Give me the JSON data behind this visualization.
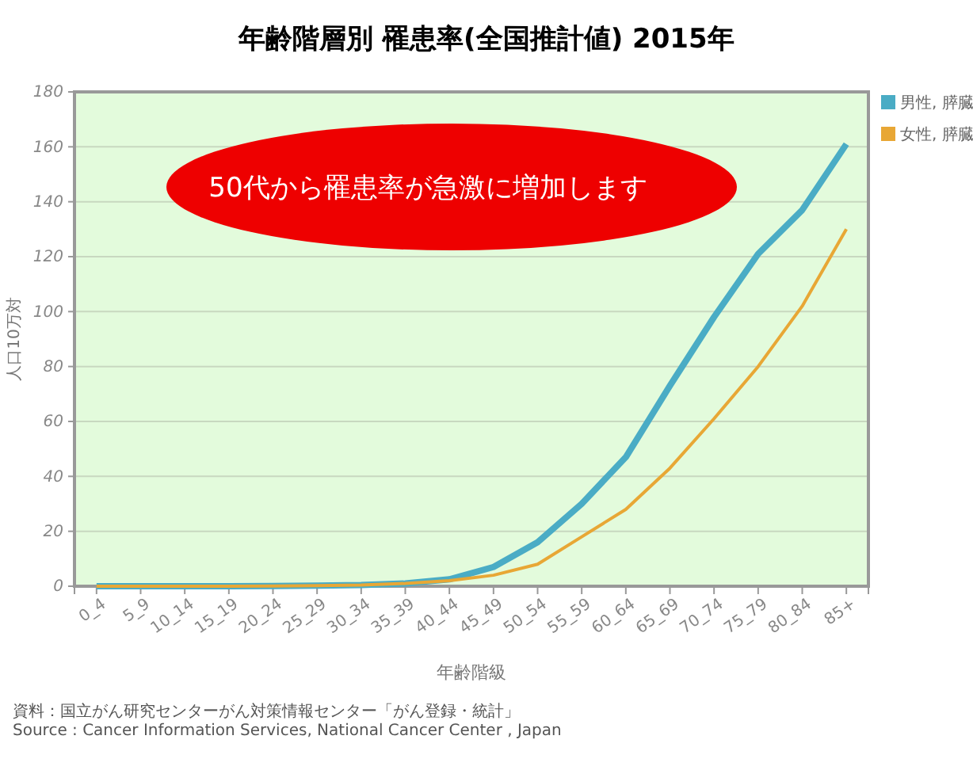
{
  "chart_data": {
    "type": "line",
    "title": "年齢階層別 罹患率(全国推計値) 2015年",
    "xlabel": "年齢階級",
    "ylabel": "人口10万対",
    "categories": [
      "0_4",
      "5_9",
      "10_14",
      "15_19",
      "20_24",
      "25_29",
      "30_34",
      "35_39",
      "40_44",
      "45_49",
      "50_54",
      "55_59",
      "60_64",
      "65_69",
      "70_74",
      "75_79",
      "80_84",
      "85+"
    ],
    "series": [
      {
        "name": "男性, 膵臓",
        "color": "#4aacc5",
        "values": [
          0,
          0,
          0,
          0,
          0.1,
          0.2,
          0.4,
          1,
          2.5,
          7,
          16,
          30,
          47,
          73,
          98,
          121,
          137,
          161
        ]
      },
      {
        "name": "女性, 膵臓",
        "color": "#e8a735",
        "values": [
          0,
          0,
          0,
          0,
          0.1,
          0.2,
          0.4,
          1,
          2,
          4,
          8,
          18,
          28,
          43,
          61,
          80,
          102,
          130
        ]
      }
    ],
    "ylim": [
      0,
      180
    ],
    "yticks": [
      0,
      20,
      40,
      60,
      80,
      100,
      120,
      140,
      160,
      180
    ],
    "grid": "y",
    "legend": "top right",
    "marker": "none",
    "line_style": "solid",
    "annotations": [
      "50代から罹患率が急激に増加します",
      "資料：国立がん研究センターがん対策情報センター「がん登録・統計」",
      "Source : Cancer Information Services, National Cancer Center , Japan"
    ]
  }
}
